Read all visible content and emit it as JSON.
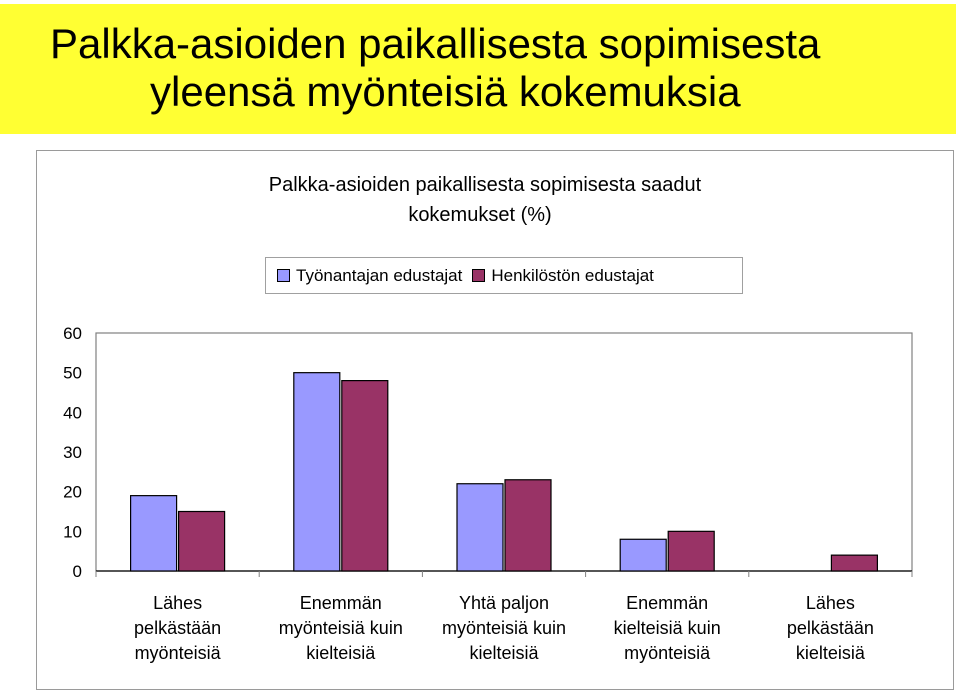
{
  "header": {
    "title_line1": "Palkka-asioiden paikallisesta sopimisesta",
    "title_line2": "yleensä myönteisiä kokemuksia"
  },
  "chart_data": {
    "type": "bar",
    "title_line1": "Palkka-asioiden paikallisesta sopimisesta saadut",
    "title_line2": "kokemukset (%)",
    "categories": [
      [
        "Lähes",
        "pelkästään",
        "myönteisiä"
      ],
      [
        "Enemmän",
        "myönteisiä kuin",
        "kielteisiä"
      ],
      [
        "Yhtä paljon",
        "myönteisiä kuin",
        "kielteisiä"
      ],
      [
        "Enemmän",
        "kielteisiä kuin",
        "myönteisiä"
      ],
      [
        "Lähes",
        "pelkästään",
        "kielteisiä"
      ]
    ],
    "series": [
      {
        "name": "Työnantajan edustajat",
        "color": "#9999ff",
        "values": [
          19,
          50,
          22,
          8,
          0
        ]
      },
      {
        "name": "Henkilöstön edustajat",
        "color": "#993366",
        "values": [
          15,
          48,
          23,
          10,
          4
        ]
      }
    ],
    "yticks": [
      "0",
      "10",
      "20",
      "30",
      "40",
      "50",
      "60"
    ],
    "ylim": [
      0,
      60
    ],
    "grid": false,
    "legend_position": "top"
  }
}
